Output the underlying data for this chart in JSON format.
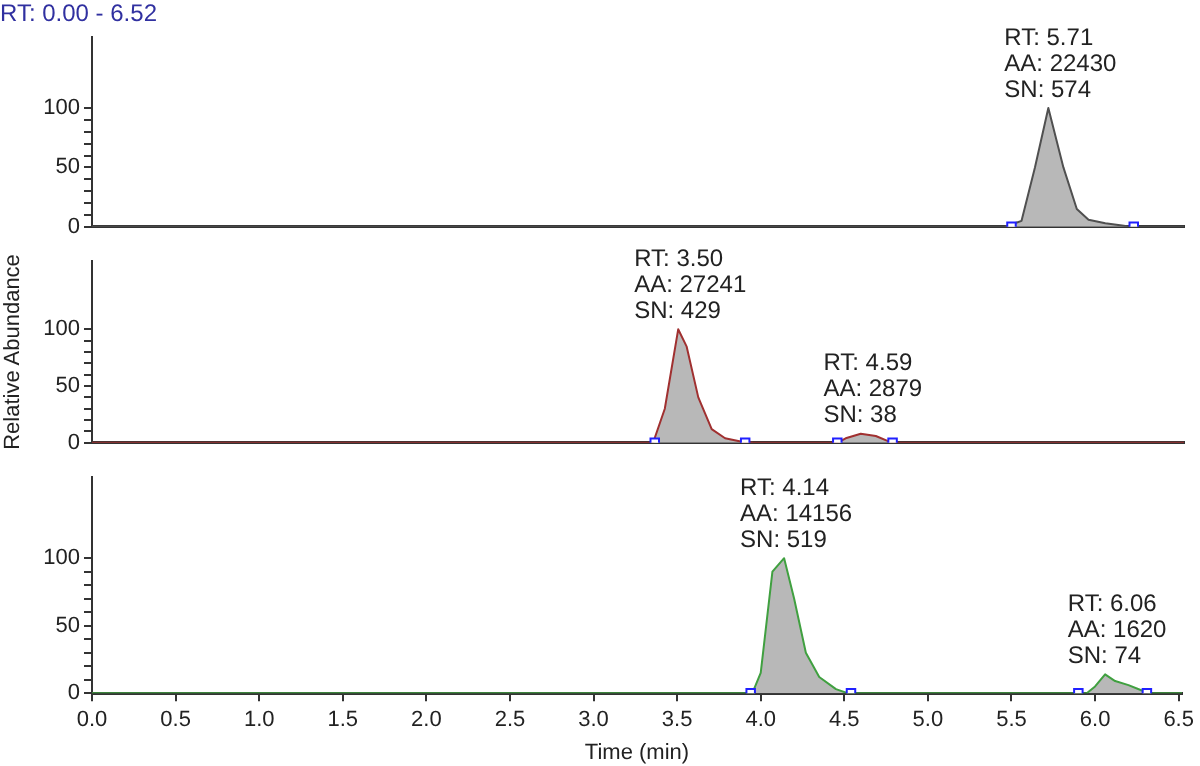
{
  "chart_data": [
    {
      "type": "area",
      "title": "RT: 0.00 - 6.52",
      "xlim": [
        0,
        6.52
      ],
      "xticks": [
        0,
        0.5,
        1,
        1.5,
        2,
        2.5,
        3,
        3.5,
        4,
        4.5,
        5,
        5.5,
        6,
        6.5
      ],
      "ylim": [
        0,
        160
      ],
      "yticks": [
        0,
        {
          "value": 10,
          "label": null
        },
        {
          "value": 20,
          "label": null
        },
        {
          "value": 30,
          "label": null
        },
        {
          "value": 40,
          "label": null
        },
        50,
        {
          "value": 60,
          "label": null
        },
        {
          "value": 70,
          "label": null
        },
        {
          "value": 80,
          "label": null
        },
        {
          "value": 90,
          "label": null
        },
        100
      ],
      "tick_labels": "y",
      "grid": false,
      "legend": false,
      "marker": "none",
      "series": [
        {
          "color": "#505050",
          "x": [
            0,
            5.45,
            5.55,
            5.63,
            5.71,
            5.8,
            5.88,
            5.95,
            6.05,
            6.15,
            6.2,
            6.52
          ],
          "values": [
            0,
            0,
            5,
            50,
            100,
            50,
            15,
            6,
            3,
            1,
            0,
            0
          ]
        },
        {
          "type": "scatter",
          "marker": "square",
          "color": "#2020ff",
          "x": [
            5.49,
            6.22
          ],
          "values": [
            0,
            0
          ]
        }
      ],
      "annotations": [
        {
          "text": "RT: 5.71\nAA: 22430\nSN: 574",
          "x": 5.71,
          "y": 100
        }
      ]
    },
    {
      "type": "area",
      "ylabel": "Relative Abundance",
      "xlim": [
        0,
        6.52
      ],
      "xticks": [
        0,
        0.5,
        1,
        1.5,
        2,
        2.5,
        3,
        3.5,
        4,
        4.5,
        5,
        5.5,
        6,
        6.5
      ],
      "ylim": [
        0,
        160
      ],
      "yticks": [
        0,
        {
          "value": 10,
          "label": null
        },
        {
          "value": 20,
          "label": null
        },
        {
          "value": 30,
          "label": null
        },
        {
          "value": 40,
          "label": null
        },
        50,
        {
          "value": 60,
          "label": null
        },
        {
          "value": 70,
          "label": null
        },
        {
          "value": 80,
          "label": null
        },
        {
          "value": 90,
          "label": null
        },
        100
      ],
      "tick_labels": "y",
      "grid": false,
      "legend": false,
      "marker": "none",
      "series": [
        {
          "color": "#a03030",
          "x": [
            0,
            3.35,
            3.42,
            3.5,
            3.55,
            3.62,
            3.7,
            3.78,
            3.88,
            3.95,
            4.45,
            4.5,
            4.59,
            4.68,
            4.76,
            4.8,
            6.52
          ],
          "values": [
            0,
            0,
            30,
            100,
            85,
            40,
            12,
            4,
            1,
            0,
            0,
            4,
            8,
            6,
            1,
            0,
            0
          ]
        },
        {
          "type": "scatter",
          "marker": "square",
          "color": "#2020ff",
          "x": [
            3.36,
            3.9,
            4.45,
            4.78
          ],
          "values": [
            0,
            0,
            0,
            0
          ]
        }
      ],
      "annotations": [
        {
          "text": "RT: 3.50\nAA: 27241\nSN: 429",
          "x": 3.5,
          "y": 100
        },
        {
          "text": "RT: 4.59\nAA: 2879\nSN: 38",
          "x": 4.59,
          "y": 8
        }
      ]
    },
    {
      "type": "area",
      "xlabel": "Time (min)",
      "xlim": [
        0,
        6.52
      ],
      "xticks": [
        {
          "value": 0,
          "label": "0.0"
        },
        0.5,
        {
          "value": 1,
          "label": "1.0"
        },
        1.5,
        {
          "value": 2,
          "label": "2.0"
        },
        2.5,
        {
          "value": 3,
          "label": "3.0"
        },
        3.5,
        {
          "value": 4,
          "label": "4.0"
        },
        4.5,
        {
          "value": 5,
          "label": "5.0"
        },
        5.5,
        {
          "value": 6,
          "label": "6.0"
        },
        6.5
      ],
      "ylim": [
        0,
        160
      ],
      "yticks": [
        0,
        {
          "value": 10,
          "label": null
        },
        {
          "value": 20,
          "label": null
        },
        {
          "value": 30,
          "label": null
        },
        {
          "value": 40,
          "label": null
        },
        50,
        {
          "value": 60,
          "label": null
        },
        {
          "value": 70,
          "label": null
        },
        {
          "value": 80,
          "label": null
        },
        {
          "value": 90,
          "label": null
        },
        100
      ],
      "grid": false,
      "legend": false,
      "marker": "none",
      "series": [
        {
          "color": "#40a040",
          "x": [
            0,
            3.95,
            4.0,
            4.07,
            4.14,
            4.2,
            4.27,
            4.35,
            4.45,
            4.52,
            5.95,
            6.0,
            6.06,
            6.12,
            6.2,
            6.28,
            6.33,
            6.52
          ],
          "values": [
            0,
            0,
            15,
            90,
            100,
            70,
            30,
            12,
            3,
            0,
            0,
            5,
            14,
            9,
            6,
            2,
            0,
            0
          ]
        },
        {
          "type": "scatter",
          "marker": "square",
          "color": "#2020ff",
          "x": [
            3.94,
            4.54,
            5.9,
            6.31
          ],
          "values": [
            0,
            0,
            0,
            0
          ]
        }
      ],
      "annotations": [
        {
          "text": "RT: 4.14\nAA: 14156\nSN: 519",
          "x": 4.14,
          "y": 100
        },
        {
          "text": "RT: 6.06\nAA: 1620\nSN: 74",
          "x": 6.06,
          "y": 14
        }
      ]
    }
  ]
}
